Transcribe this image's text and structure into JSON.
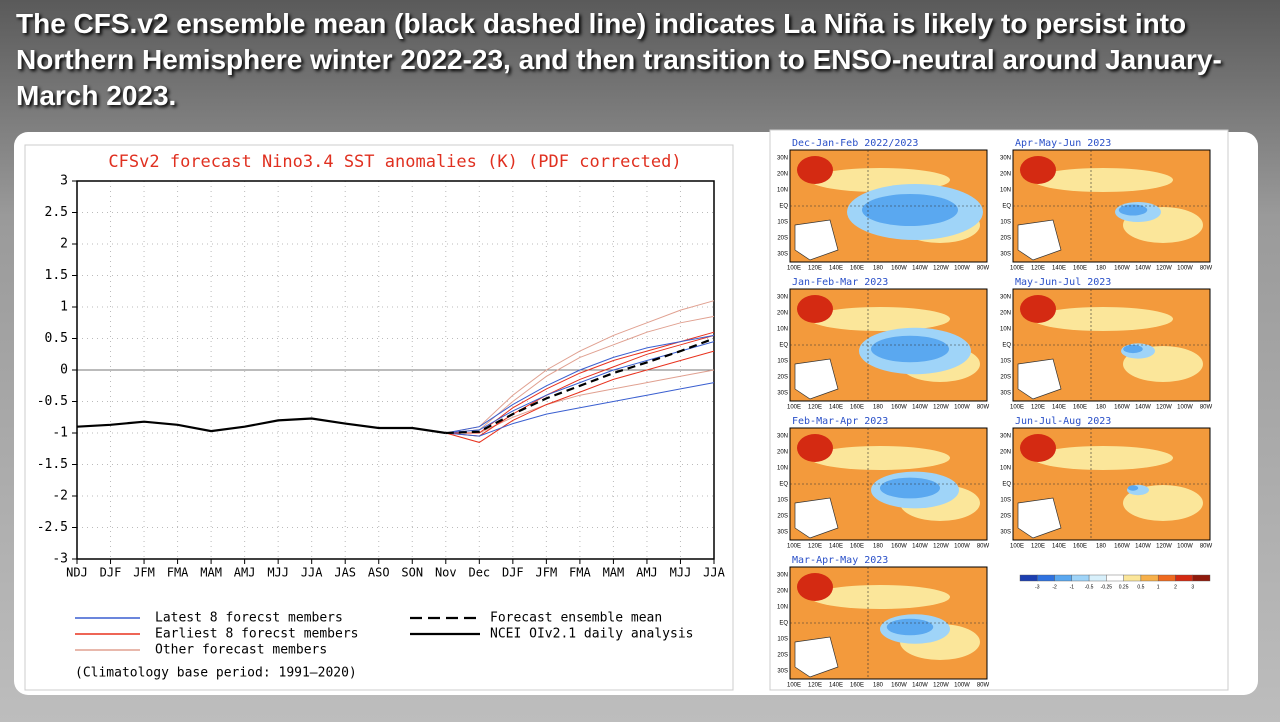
{
  "header": {
    "title": "The CFS.v2 ensemble mean (black dashed line) indicates La Niña is likely to persist into Northern Hemisphere winter 2022-23, and then transition to ENSO-neutral around January-March 2023."
  },
  "chart_data": {
    "type": "line",
    "title": "CFSv2 forecast Nino3.4 SST anomalies (K) (PDF corrected)",
    "categories": [
      "NDJ",
      "DJF",
      "JFM",
      "FMA",
      "MAM",
      "AMJ",
      "MJJ",
      "JJA",
      "JAS",
      "ASO",
      "SON",
      "Nov",
      "Dec",
      "DJF",
      "JFM",
      "FMA",
      "MAM",
      "AMJ",
      "MJJ",
      "JJA"
    ],
    "ylim": [
      -3,
      3
    ],
    "yticks": [
      -3,
      -2.5,
      -2,
      -1.5,
      -1,
      -0.5,
      0,
      0.5,
      1,
      1.5,
      2,
      2.5,
      3
    ],
    "grid": true,
    "member_groups": [
      {
        "name": "Latest 8 forecst members",
        "color": "#3a5fd0",
        "members": [
          [
            null,
            null,
            null,
            null,
            null,
            null,
            null,
            null,
            null,
            null,
            null,
            -1.0,
            -1.05,
            -0.85,
            -0.7,
            -0.6,
            -0.5,
            -0.4,
            -0.3,
            -0.2
          ],
          [
            null,
            null,
            null,
            null,
            null,
            null,
            null,
            null,
            null,
            null,
            null,
            -1.0,
            -0.95,
            -0.65,
            -0.4,
            -0.2,
            0.0,
            0.15,
            0.3,
            0.45
          ],
          [
            null,
            null,
            null,
            null,
            null,
            null,
            null,
            null,
            null,
            null,
            null,
            -1.0,
            -0.9,
            -0.55,
            -0.25,
            0.0,
            0.2,
            0.35,
            0.45,
            0.55
          ]
        ]
      },
      {
        "name": "Earliest 8 forecst members",
        "color": "#e8321e",
        "members": [
          [
            null,
            null,
            null,
            null,
            null,
            null,
            null,
            null,
            null,
            null,
            null,
            -1.0,
            -1.15,
            -0.8,
            -0.55,
            -0.35,
            -0.15,
            0.0,
            0.15,
            0.3
          ],
          [
            null,
            null,
            null,
            null,
            null,
            null,
            null,
            null,
            null,
            null,
            null,
            -1.0,
            -1.05,
            -0.7,
            -0.4,
            -0.15,
            0.05,
            0.25,
            0.4,
            0.55
          ],
          [
            null,
            null,
            null,
            null,
            null,
            null,
            null,
            null,
            null,
            null,
            null,
            -1.0,
            -1.0,
            -0.6,
            -0.3,
            -0.05,
            0.15,
            0.3,
            0.45,
            0.6
          ]
        ]
      },
      {
        "name": "Other forecast members",
        "color": "#e0a090",
        "members": [
          [
            null,
            null,
            null,
            null,
            null,
            null,
            null,
            null,
            null,
            null,
            null,
            -1.0,
            -0.9,
            -0.4,
            0.0,
            0.3,
            0.55,
            0.75,
            0.95,
            1.1
          ],
          [
            null,
            null,
            null,
            null,
            null,
            null,
            null,
            null,
            null,
            null,
            null,
            -1.0,
            -1.0,
            -0.75,
            -0.55,
            -0.4,
            -0.3,
            -0.2,
            -0.1,
            0.0
          ],
          [
            null,
            null,
            null,
            null,
            null,
            null,
            null,
            null,
            null,
            null,
            null,
            -1.0,
            -0.95,
            -0.5,
            -0.1,
            0.2,
            0.4,
            0.6,
            0.75,
            0.85
          ]
        ]
      }
    ],
    "series": [
      {
        "name": "Forecast ensemble mean",
        "color": "#000000",
        "dash": true,
        "values": [
          null,
          null,
          null,
          null,
          null,
          null,
          null,
          null,
          null,
          null,
          null,
          -1.0,
          -0.98,
          -0.7,
          -0.45,
          -0.25,
          -0.05,
          0.12,
          0.3,
          0.5
        ]
      },
      {
        "name": "NCEI OIv2.1 daily analysis",
        "color": "#000000",
        "dash": false,
        "values": [
          -0.9,
          -0.87,
          -0.82,
          -0.87,
          -0.97,
          -0.9,
          -0.8,
          -0.77,
          -0.85,
          -0.92,
          -0.92,
          -1.0,
          null,
          null,
          null,
          null,
          null,
          null,
          null,
          null
        ]
      }
    ],
    "note": "(Climatology base period: 1991–2020)"
  },
  "maps": {
    "lat_labels": [
      "30N",
      "20N",
      "10N",
      "EQ",
      "10S",
      "20S",
      "30S"
    ],
    "lon_labels": [
      "100E",
      "120E",
      "140E",
      "160E",
      "180",
      "160W",
      "140W",
      "120W",
      "100W",
      "80W"
    ],
    "panels": [
      "Dec-Jan-Feb 2022/2023",
      "Apr-May-Jun 2023",
      "Jan-Feb-Mar 2023",
      "May-Jun-Jul 2023",
      "Feb-Mar-Apr 2023",
      "Jun-Jul-Aug 2023",
      "Mar-Apr-May 2023"
    ],
    "colorbar": {
      "ticks": [
        -3,
        -2,
        -1,
        -0.5,
        -0.25,
        0.25,
        0.5,
        1,
        2,
        3
      ],
      "colors": [
        "#1c3fb0",
        "#2f72e0",
        "#5aa8f0",
        "#9fd4f8",
        "#d8f0fb",
        "#ffffff",
        "#fbe69a",
        "#f7b04a",
        "#ef6a1f",
        "#d42a12",
        "#8f1a0c"
      ]
    }
  }
}
